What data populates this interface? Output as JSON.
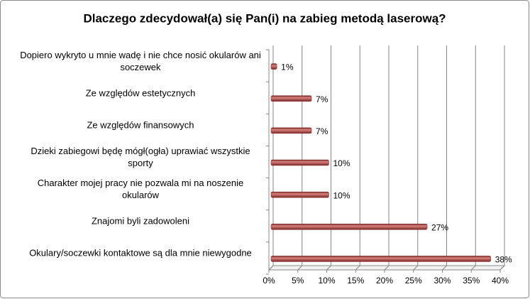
{
  "chart_data": {
    "type": "bar",
    "orientation": "horizontal",
    "title": "Dlaczego zdecydował(a) się Pan(i) na zabieg metodą laserową?",
    "categories": [
      "Dopiero wykryto u mnie wadę i nie chce nosić okularów ani soczewek",
      "Ze względów estetycznych",
      "Ze względów finansowych",
      "Dzieki zabiegowi będę mógł(ogła) uprawiać wszystkie sporty",
      "Charakter mojej pracy nie pozwala mi na noszenie okularów",
      "Znajomi byli zadowoleni",
      "Okulary/soczewki kontaktowe są dla mnie niewygodne"
    ],
    "values": [
      1,
      7,
      7,
      10,
      10,
      27,
      38
    ],
    "value_labels": [
      "1%",
      "7%",
      "7%",
      "10%",
      "10%",
      "27%",
      "38%"
    ],
    "color": "#953735",
    "xlim": [
      0,
      40
    ],
    "xticks": [
      {
        "value": 0,
        "label": "0%"
      },
      {
        "value": 5,
        "label": "5%"
      },
      {
        "value": 10,
        "label": "10%"
      },
      {
        "value": 15,
        "label": "15%"
      },
      {
        "value": 20,
        "label": "20%"
      },
      {
        "value": 25,
        "label": "25%"
      },
      {
        "value": 30,
        "label": "30%"
      },
      {
        "value": 35,
        "label": "35%"
      },
      {
        "value": 40,
        "label": "40%"
      }
    ],
    "grid": true
  }
}
